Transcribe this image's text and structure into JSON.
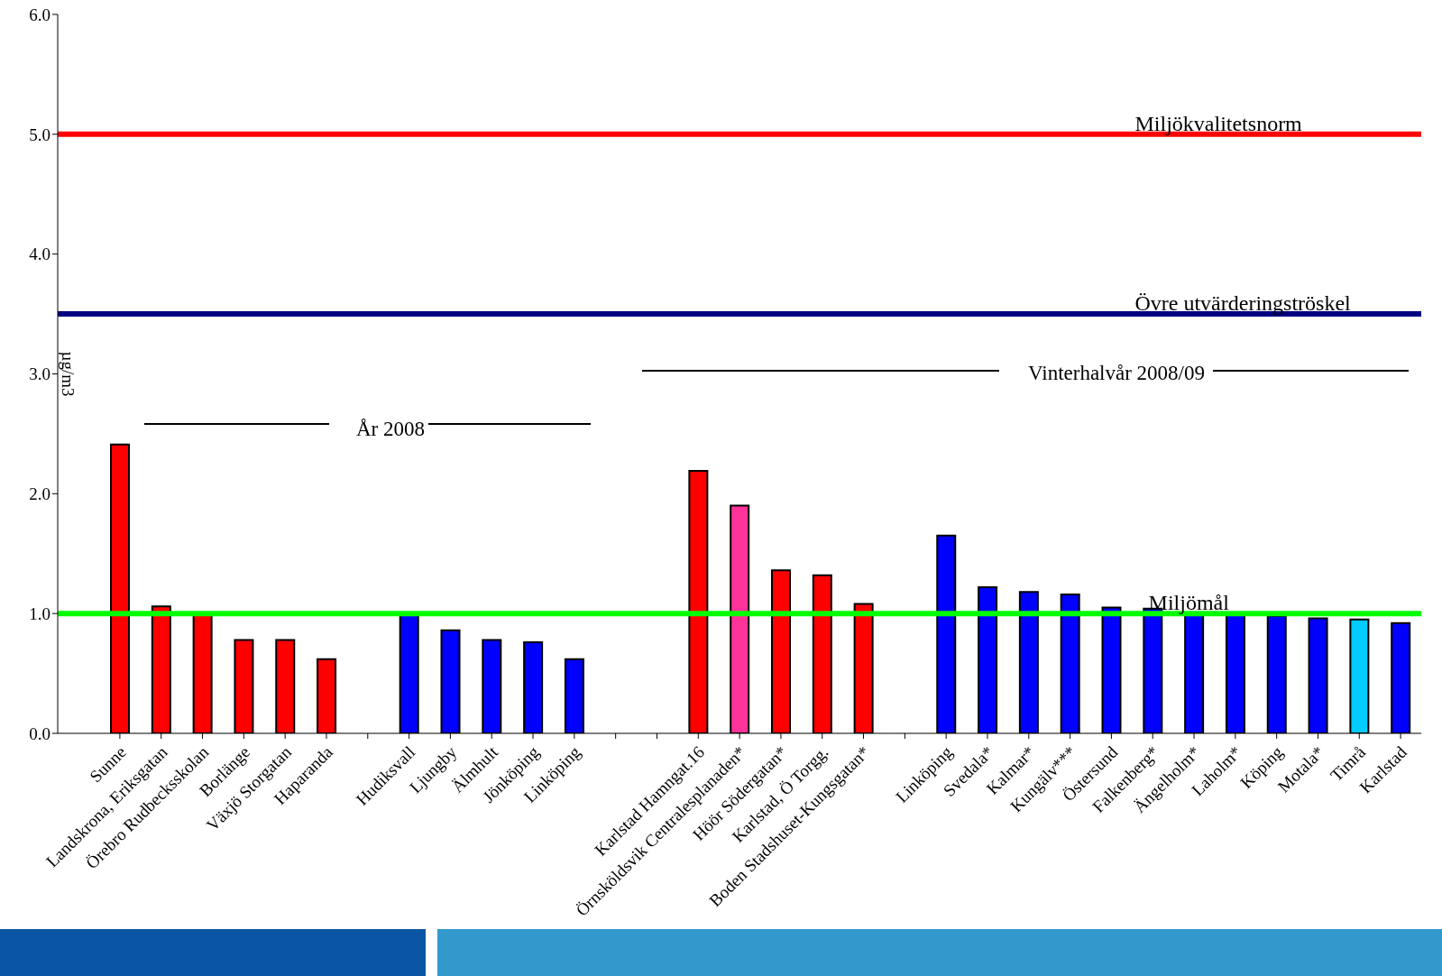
{
  "chart_data": {
    "type": "bar",
    "ylabel": "µg/m3",
    "categories": [
      "Sunne",
      "Landskrona, Eriksgatan",
      "Örebro Rudbecksskolan",
      "Borlänge",
      "Växjö Storgatan",
      "Haparanda",
      null,
      "Hudiksvall",
      "Ljungby",
      "Älmhult",
      "Jönköping",
      "Linköping",
      null,
      null,
      "Karlstad Hamngat.16",
      "Örnsköldsvik Centralesplanaden*",
      "Höör Södergatan*",
      "Karlstad, Ö Torgg.",
      "Boden Stadshuset-Kungsgatan*",
      null,
      "Linköping",
      "Svedala*",
      "Kalmar*",
      "Kungälv***",
      "Östersund",
      "Falkenberg*",
      "Ängelholm*",
      "Laholm*",
      "Köping",
      "Motala*",
      "Timrå",
      "Karlstad"
    ],
    "values": [
      2.41,
      1.06,
      1.0,
      0.78,
      0.78,
      0.62,
      null,
      1.0,
      0.86,
      0.78,
      0.76,
      0.62,
      null,
      null,
      2.19,
      1.9,
      1.36,
      1.32,
      1.08,
      null,
      1.65,
      1.22,
      1.18,
      1.16,
      1.05,
      1.04,
      1.0,
      1.0,
      0.98,
      0.96,
      0.95,
      0.92
    ],
    "colors": [
      "#ff0000",
      "#ff0000",
      "#ff0000",
      "#ff0000",
      "#ff0000",
      "#ff0000",
      "#0000ff",
      "#0000ff",
      "#0000ff",
      "#0000ff",
      "#0000ff",
      "#0000ff",
      "#ff0000",
      "#ff0000",
      "#ff0000",
      "#ff3399",
      "#ff0000",
      "#ff0000",
      "#ff0000",
      "#0000ff",
      "#0000ff",
      "#0000ff",
      "#0000ff",
      "#0000ff",
      "#0000ff",
      "#0000ff",
      "#0000ff",
      "#0000ff",
      "#0000ff",
      "#0000ff",
      "#00ccff",
      "#0000ff"
    ],
    "ylim": [
      0,
      6
    ],
    "yticks": [
      {
        "value": 0,
        "label": "0.0"
      },
      {
        "value": 1,
        "label": "1.0"
      },
      {
        "value": 2,
        "label": "2.0"
      },
      {
        "value": 3,
        "label": "3.0"
      },
      {
        "value": 4,
        "label": "4.0"
      },
      {
        "value": 5,
        "label": "5.0"
      },
      {
        "value": 6,
        "label": "6.0"
      }
    ],
    "ref_lines": [
      {
        "axis": "y",
        "value": 5,
        "label": "Miljökvalitetsnorm",
        "color": "#ff0000"
      },
      {
        "axis": "y",
        "value": 3.5,
        "label": "Övre utvärderingströskel",
        "color": "#000080"
      },
      {
        "axis": "y",
        "value": 1,
        "label": "Miljömål",
        "color": "#00ff00"
      }
    ],
    "annotations": [
      "År 2008",
      "Vinterhalvår 2008/09"
    ]
  }
}
